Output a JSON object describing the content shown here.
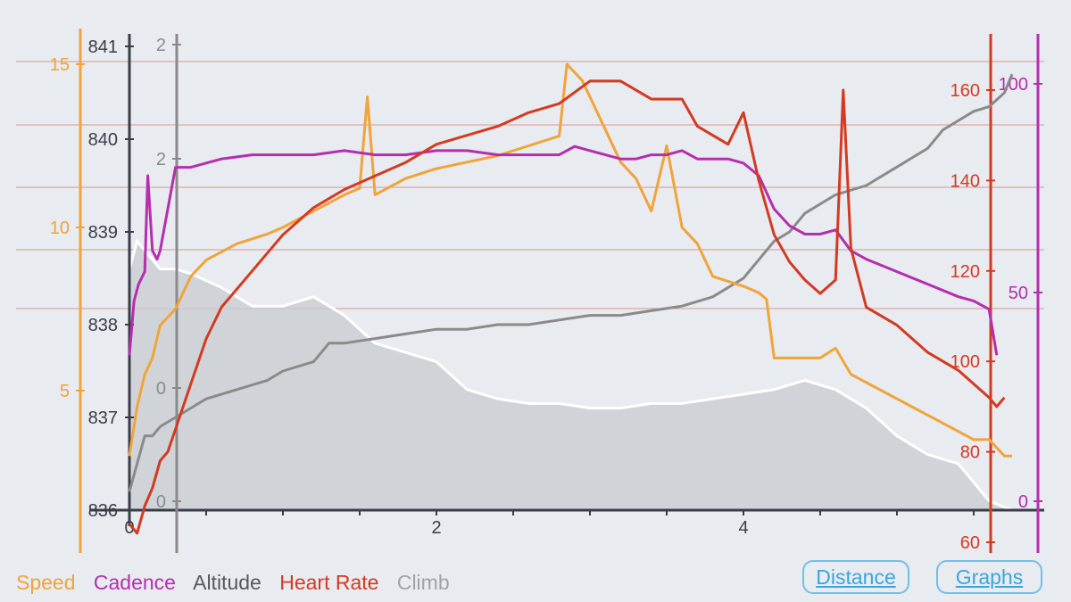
{
  "legend": {
    "speed": "Speed",
    "cadence": "Cadence",
    "altitude": "Altitude",
    "heart_rate": "Heart Rate",
    "climb": "Climb"
  },
  "buttons": {
    "distance": "Distance",
    "graphs": "Graphs"
  },
  "colors": {
    "speed": "#f0a43a",
    "cadence": "#b52eae",
    "altitude": "#8a8a8a",
    "heart_rate": "#d43a22",
    "climb_fill": "#c8ccd2",
    "climb_line": "#ffffff",
    "axis_dark": "#3a3d48",
    "background": "#e8ebef",
    "button": "#3aa6dc"
  },
  "chart_data": {
    "type": "line",
    "x_axis": {
      "ticks": [
        "0",
        "2",
        "4"
      ],
      "range": [
        0,
        5.8
      ]
    },
    "axes": {
      "speed": {
        "ticks": [
          "5",
          "10",
          "15"
        ],
        "range": [
          1.8,
          16.1
        ]
      },
      "altitude": {
        "ticks": [
          "836",
          "837",
          "838",
          "839",
          "840",
          "841"
        ],
        "range": [
          836,
          841
        ]
      },
      "climb": {
        "ticks": [
          "0",
          "0",
          "2",
          "2"
        ]
      },
      "heart_rate": {
        "ticks": [
          "60",
          "80",
          "100",
          "120",
          "140",
          "160"
        ],
        "range": [
          60,
          170
        ]
      },
      "cadence": {
        "ticks": [
          "0",
          "50",
          "100"
        ],
        "range": [
          0,
          100
        ]
      }
    },
    "series": [
      {
        "key": "speed",
        "x": [
          0,
          0.05,
          0.1,
          0.15,
          0.2,
          0.3,
          0.4,
          0.5,
          0.7,
          0.9,
          1.0,
          1.2,
          1.4,
          1.5,
          1.55,
          1.6,
          1.8,
          2.0,
          2.2,
          2.4,
          2.6,
          2.8,
          2.85,
          2.95,
          3.0,
          3.1,
          3.2,
          3.3,
          3.4,
          3.5,
          3.6,
          3.7,
          3.8,
          4.0,
          4.1,
          4.15,
          4.2,
          4.3,
          4.5,
          4.6,
          4.7,
          4.9,
          5.1,
          5.3,
          5.5,
          5.6,
          5.7,
          5.75
        ],
        "y": [
          3.0,
          4.5,
          5.5,
          6.0,
          7.0,
          7.5,
          8.5,
          9.0,
          9.5,
          9.8,
          10.0,
          10.5,
          11.0,
          11.2,
          14.0,
          11.0,
          11.5,
          11.8,
          12.0,
          12.2,
          12.5,
          12.8,
          15.0,
          14.5,
          14.0,
          13.0,
          12.0,
          11.5,
          10.5,
          12.5,
          10.0,
          9.5,
          8.5,
          8.2,
          8.0,
          7.8,
          6.0,
          6.0,
          6.0,
          6.3,
          5.5,
          5.0,
          4.5,
          4.0,
          3.5,
          3.5,
          3.0,
          3.0
        ]
      },
      {
        "key": "cadence",
        "x": [
          0,
          0.03,
          0.06,
          0.1,
          0.12,
          0.15,
          0.18,
          0.2,
          0.3,
          0.4,
          0.6,
          0.8,
          1.0,
          1.2,
          1.4,
          1.6,
          1.8,
          2.0,
          2.2,
          2.4,
          2.6,
          2.8,
          2.9,
          3.0,
          3.1,
          3.2,
          3.3,
          3.4,
          3.5,
          3.6,
          3.7,
          3.8,
          3.9,
          4.0,
          4.1,
          4.2,
          4.3,
          4.4,
          4.5,
          4.6,
          4.7,
          4.8,
          5.0,
          5.2,
          5.4,
          5.5,
          5.6,
          5.65
        ],
        "y": [
          35,
          48,
          52,
          55,
          78,
          60,
          58,
          60,
          80,
          80,
          82,
          83,
          83,
          83,
          84,
          83,
          83,
          84,
          84,
          83,
          83,
          83,
          85,
          84,
          83,
          82,
          82,
          83,
          83,
          84,
          82,
          82,
          82,
          81,
          78,
          70,
          66,
          64,
          64,
          65,
          60,
          58,
          55,
          52,
          49,
          48,
          46,
          35
        ]
      },
      {
        "key": "altitude",
        "x": [
          0,
          0.05,
          0.1,
          0.15,
          0.2,
          0.3,
          0.4,
          0.5,
          0.7,
          0.9,
          1.0,
          1.2,
          1.3,
          1.4,
          1.6,
          1.8,
          2.0,
          2.2,
          2.4,
          2.6,
          2.8,
          3.0,
          3.2,
          3.4,
          3.6,
          3.8,
          4.0,
          4.1,
          4.2,
          4.3,
          4.4,
          4.6,
          4.8,
          5.0,
          5.2,
          5.3,
          5.4,
          5.5,
          5.6,
          5.7,
          5.75
        ],
        "y": [
          836.2,
          836.5,
          836.8,
          836.8,
          836.9,
          837.0,
          837.1,
          837.2,
          837.3,
          837.4,
          837.5,
          837.6,
          837.8,
          837.8,
          837.85,
          837.9,
          837.95,
          837.95,
          838.0,
          838.0,
          838.05,
          838.1,
          838.1,
          838.15,
          838.2,
          838.3,
          838.5,
          838.7,
          838.9,
          839.0,
          839.2,
          839.4,
          839.5,
          839.7,
          839.9,
          840.1,
          840.2,
          840.3,
          840.35,
          840.5,
          840.7
        ]
      },
      {
        "key": "heart_rate",
        "x": [
          0,
          0.05,
          0.1,
          0.15,
          0.2,
          0.25,
          0.3,
          0.4,
          0.5,
          0.6,
          0.8,
          1.0,
          1.2,
          1.4,
          1.6,
          1.8,
          2.0,
          2.2,
          2.4,
          2.6,
          2.8,
          3.0,
          3.2,
          3.4,
          3.6,
          3.7,
          3.8,
          3.9,
          4.0,
          4.1,
          4.2,
          4.3,
          4.4,
          4.5,
          4.6,
          4.65,
          4.7,
          4.8,
          5.0,
          5.2,
          5.4,
          5.5,
          5.6,
          5.65,
          5.7
        ],
        "y": [
          64,
          62,
          68,
          72,
          78,
          80,
          85,
          95,
          105,
          112,
          120,
          128,
          134,
          138,
          141,
          144,
          148,
          150,
          152,
          155,
          157,
          162,
          162,
          158,
          158,
          152,
          150,
          148,
          155,
          140,
          128,
          122,
          118,
          115,
          118,
          160,
          125,
          112,
          108,
          102,
          98,
          95,
          92,
          90,
          92
        ]
      },
      {
        "key": "climb",
        "x": [
          0,
          0.05,
          0.1,
          0.15,
          0.2,
          0.3,
          0.4,
          0.6,
          0.8,
          1.0,
          1.2,
          1.4,
          1.6,
          1.8,
          2.0,
          2.2,
          2.4,
          2.6,
          2.8,
          3.0,
          3.2,
          3.4,
          3.6,
          3.8,
          4.0,
          4.2,
          4.4,
          4.6,
          4.8,
          5.0,
          5.2,
          5.4,
          5.6,
          5.75
        ],
        "y": [
          838.6,
          838.9,
          838.8,
          838.7,
          838.6,
          838.6,
          838.55,
          838.4,
          838.2,
          838.2,
          838.3,
          838.1,
          837.8,
          837.7,
          837.6,
          837.3,
          837.2,
          837.15,
          837.15,
          837.1,
          837.1,
          837.15,
          837.15,
          837.2,
          837.25,
          837.3,
          837.4,
          837.3,
          837.1,
          836.8,
          836.6,
          836.5,
          836.1,
          836.0
        ]
      }
    ]
  }
}
